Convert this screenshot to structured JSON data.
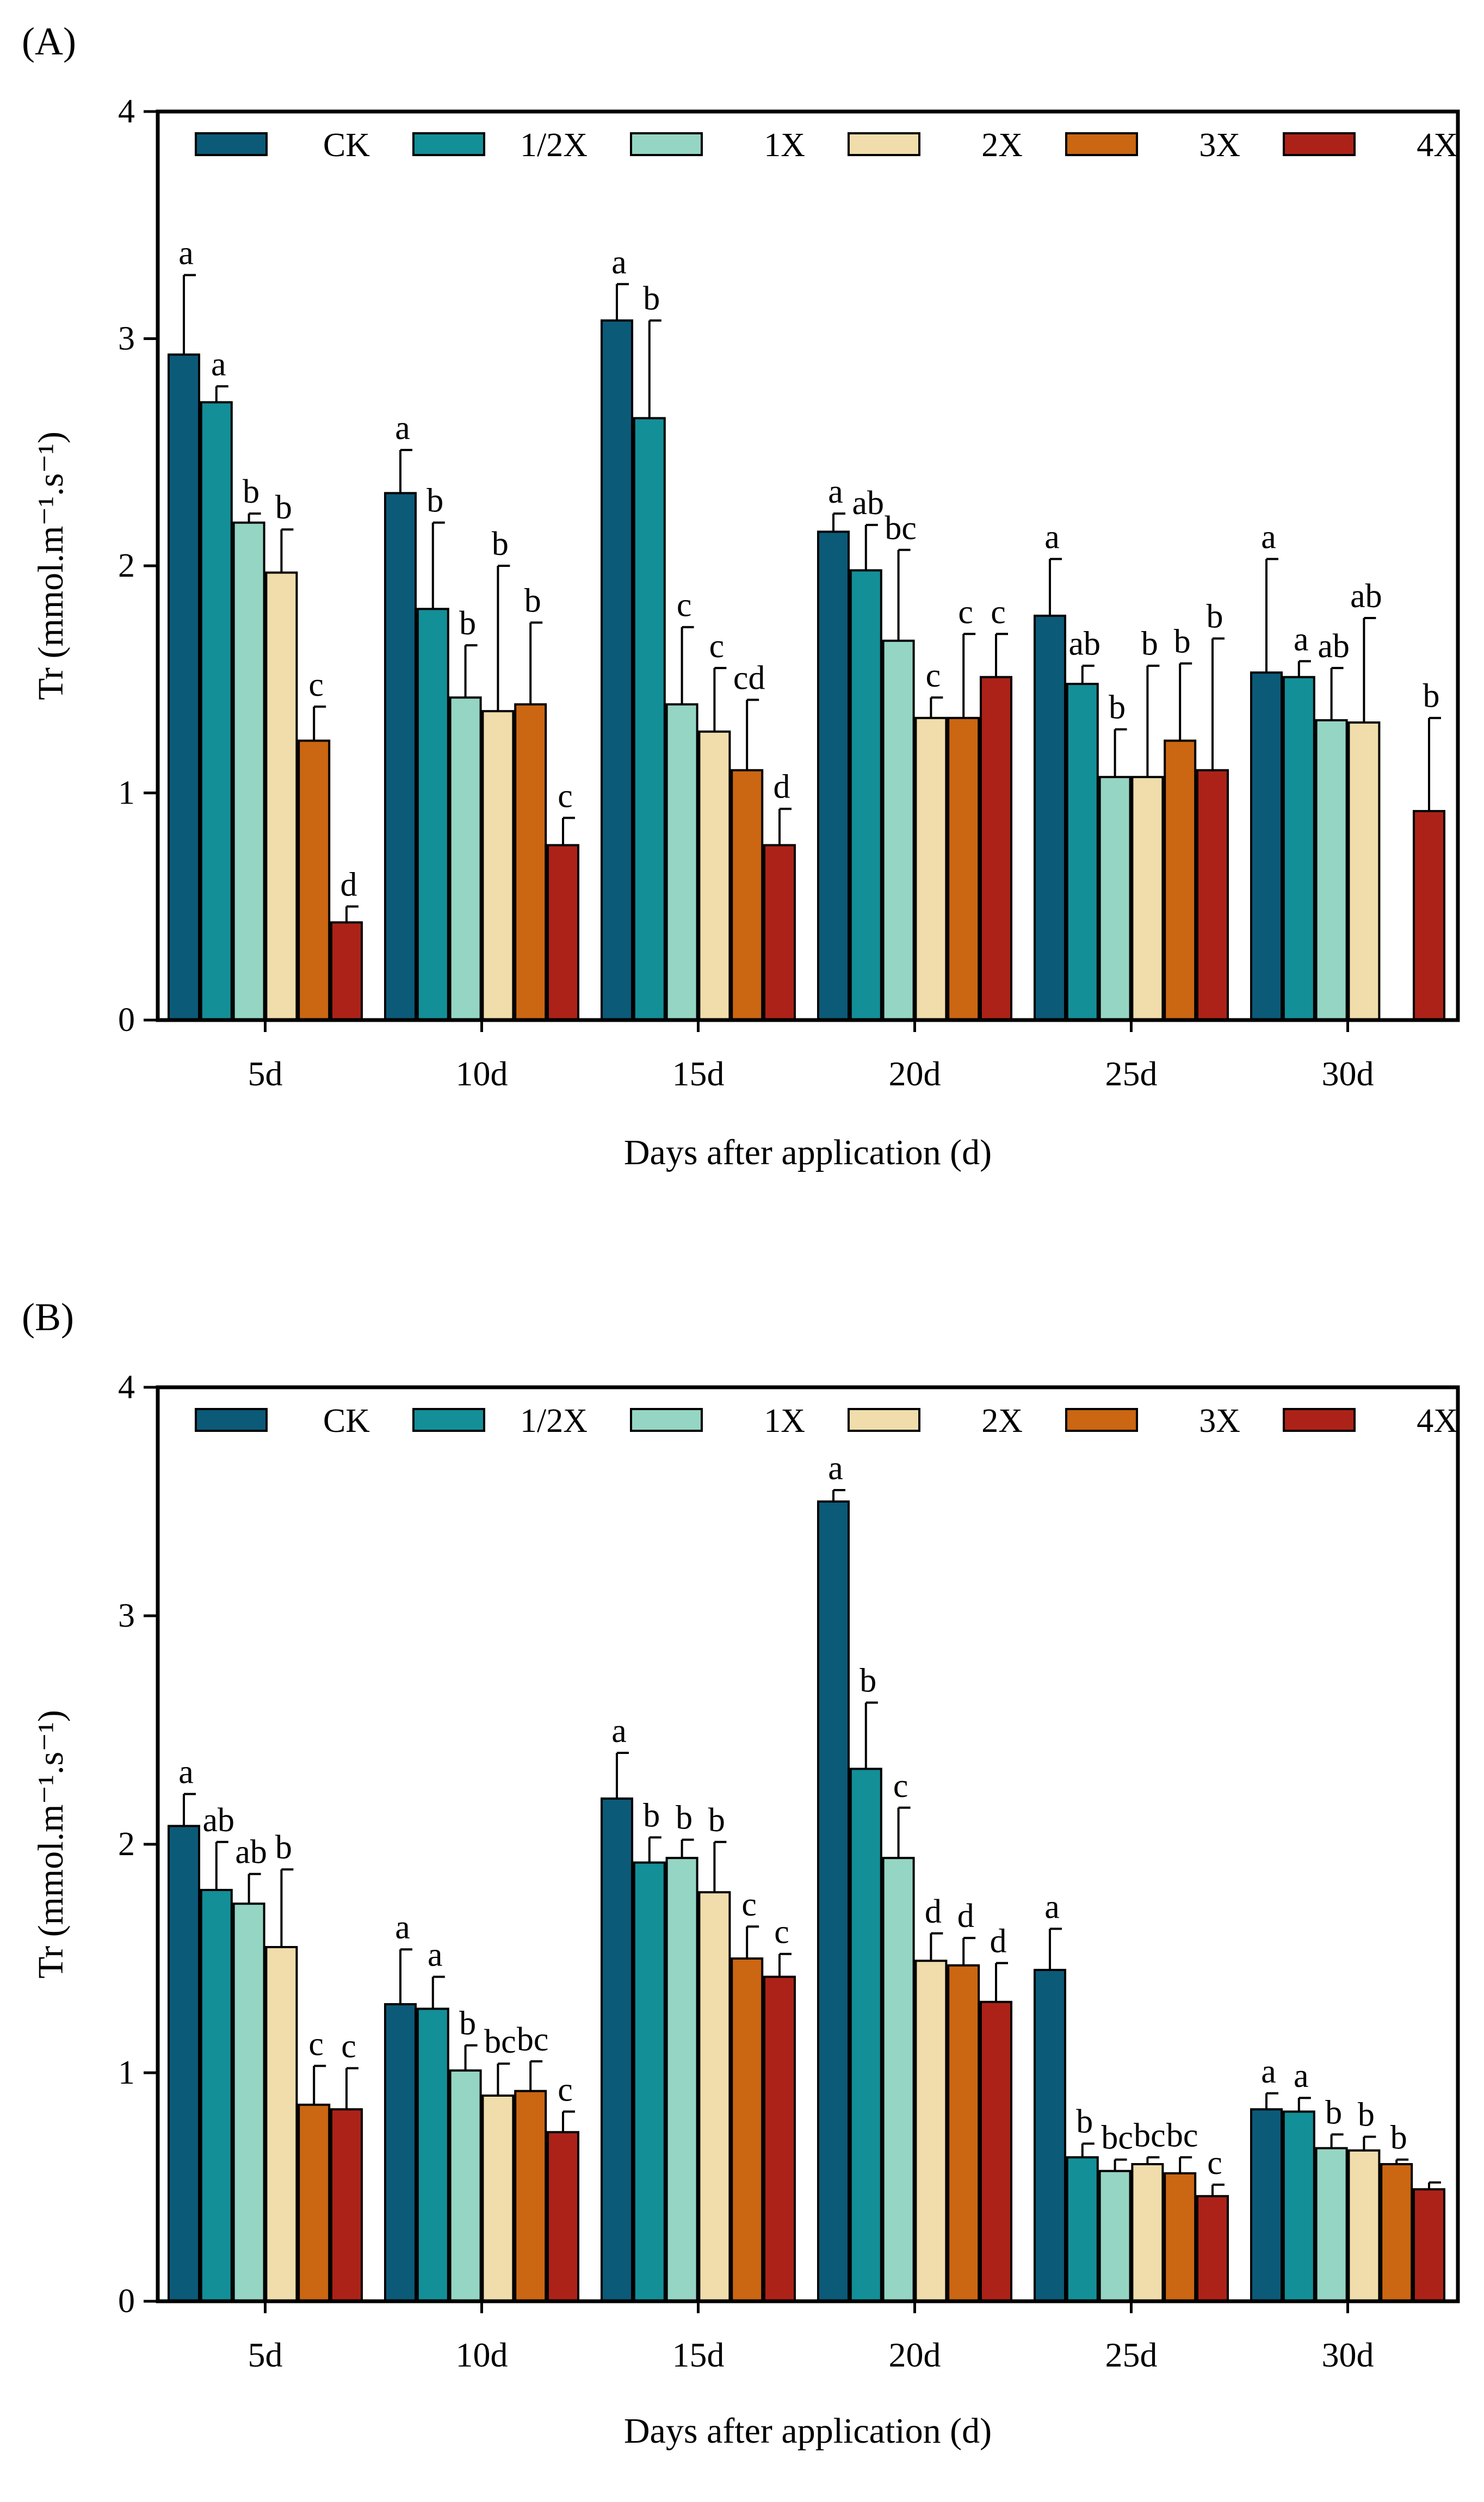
{
  "chart_data": [
    {
      "panel_label": "(A)",
      "type": "bar",
      "categories": [
        "5d",
        "10d",
        "15d",
        "20d",
        "25d",
        "30d"
      ],
      "xlabel": "Days after application (d)",
      "ylabel": "Tr (mmol.m⁻¹.s⁻¹)",
      "ylim": [
        0,
        4
      ],
      "yticks": [
        "0",
        "1",
        "2",
        "3",
        "4"
      ],
      "legend_position": "top",
      "series": [
        {
          "name": "CK",
          "color": "#0b5a78",
          "values": [
            2.93,
            2.32,
            3.08,
            2.15,
            1.78,
            1.53
          ],
          "errors": [
            0.35,
            0.19,
            0.16,
            0.08,
            0.25,
            0.5
          ],
          "letters": [
            "a",
            "a",
            "a",
            "a",
            "a",
            "a"
          ]
        },
        {
          "name": "1/2X",
          "color": "#138f98",
          "values": [
            2.72,
            1.81,
            2.65,
            1.98,
            1.48,
            1.51
          ],
          "errors": [
            0.07,
            0.38,
            0.43,
            0.2,
            0.08,
            0.07
          ],
          "letters": [
            "a",
            "b",
            "b",
            "ab",
            "ab",
            "a"
          ]
        },
        {
          "name": "1X",
          "color": "#95d5c4",
          "values": [
            2.19,
            1.42,
            1.39,
            1.67,
            1.07,
            1.32
          ],
          "errors": [
            0.04,
            0.23,
            0.34,
            0.4,
            0.21,
            0.23
          ],
          "letters": [
            "b",
            "b",
            "c",
            "bc",
            "b",
            "ab"
          ]
        },
        {
          "name": "2X",
          "color": "#f0ddab",
          "values": [
            1.97,
            1.36,
            1.27,
            1.33,
            1.07,
            1.31
          ],
          "errors": [
            0.19,
            0.64,
            0.28,
            0.09,
            0.49,
            0.46
          ],
          "letters": [
            "b",
            "b",
            "c",
            "c",
            "b",
            "ab"
          ]
        },
        {
          "name": "3X",
          "color": "#cb6612",
          "values": [
            1.23,
            1.39,
            1.1,
            1.33,
            1.23,
            0.0
          ],
          "errors": [
            0.15,
            0.36,
            0.31,
            0.37,
            0.34,
            0.0
          ],
          "letters": [
            "c",
            "b",
            "cd",
            "c",
            "b",
            ""
          ]
        },
        {
          "name": "4X",
          "color": "#ad2218",
          "values": [
            0.43,
            0.77,
            0.77,
            1.51,
            1.1,
            0.92
          ],
          "errors": [
            0.07,
            0.12,
            0.16,
            0.19,
            0.58,
            0.41
          ],
          "letters": [
            "d",
            "c",
            "d",
            "c",
            "b",
            "b"
          ]
        }
      ]
    },
    {
      "panel_label": "(B)",
      "type": "bar",
      "categories": [
        "5d",
        "10d",
        "15d",
        "20d",
        "25d",
        "30d"
      ],
      "xlabel": "Days after application (d)",
      "ylabel": "Tr (mmol.m⁻¹.s⁻¹)",
      "ylim": [
        0,
        4
      ],
      "yticks": [
        "0",
        "1",
        "2",
        "3",
        "4"
      ],
      "legend_position": "top",
      "series": [
        {
          "name": "CK",
          "color": "#0b5a78",
          "values": [
            2.08,
            1.3,
            2.2,
            3.5,
            1.45,
            0.84
          ],
          "errors": [
            0.14,
            0.24,
            0.2,
            0.05,
            0.18,
            0.07
          ],
          "letters": [
            "a",
            "a",
            "a",
            "a",
            "a",
            "a"
          ]
        },
        {
          "name": "1/2X",
          "color": "#138f98",
          "values": [
            1.8,
            1.28,
            1.92,
            2.33,
            0.63,
            0.83
          ],
          "errors": [
            0.21,
            0.14,
            0.11,
            0.29,
            0.06,
            0.06
          ],
          "letters": [
            "ab",
            "a",
            "b",
            "b",
            "b",
            "a"
          ]
        },
        {
          "name": "1X",
          "color": "#95d5c4",
          "values": [
            1.74,
            1.01,
            1.94,
            1.94,
            0.57,
            0.67
          ],
          "errors": [
            0.13,
            0.11,
            0.08,
            0.22,
            0.05,
            0.06
          ],
          "letters": [
            "ab",
            "b",
            "b",
            "c",
            "bc",
            "b"
          ]
        },
        {
          "name": "2X",
          "color": "#f0ddab",
          "values": [
            1.55,
            0.9,
            1.79,
            1.49,
            0.6,
            0.66
          ],
          "errors": [
            0.34,
            0.14,
            0.22,
            0.12,
            0.03,
            0.06
          ],
          "letters": [
            "b",
            "bc",
            "b",
            "d",
            "bc",
            "b"
          ]
        },
        {
          "name": "3X",
          "color": "#cb6612",
          "values": [
            0.86,
            0.92,
            1.5,
            1.47,
            0.56,
            0.6
          ],
          "errors": [
            0.17,
            0.13,
            0.14,
            0.12,
            0.07,
            0.02
          ],
          "letters": [
            "c",
            "bc",
            "c",
            "d",
            "bc",
            "b"
          ]
        },
        {
          "name": "4X",
          "color": "#ad2218",
          "values": [
            0.84,
            0.74,
            1.42,
            1.31,
            0.46,
            0.49
          ],
          "errors": [
            0.18,
            0.09,
            0.1,
            0.17,
            0.05,
            0.03
          ],
          "letters": [
            "c",
            "c",
            "c",
            "d",
            "c",
            ""
          ]
        }
      ]
    }
  ]
}
